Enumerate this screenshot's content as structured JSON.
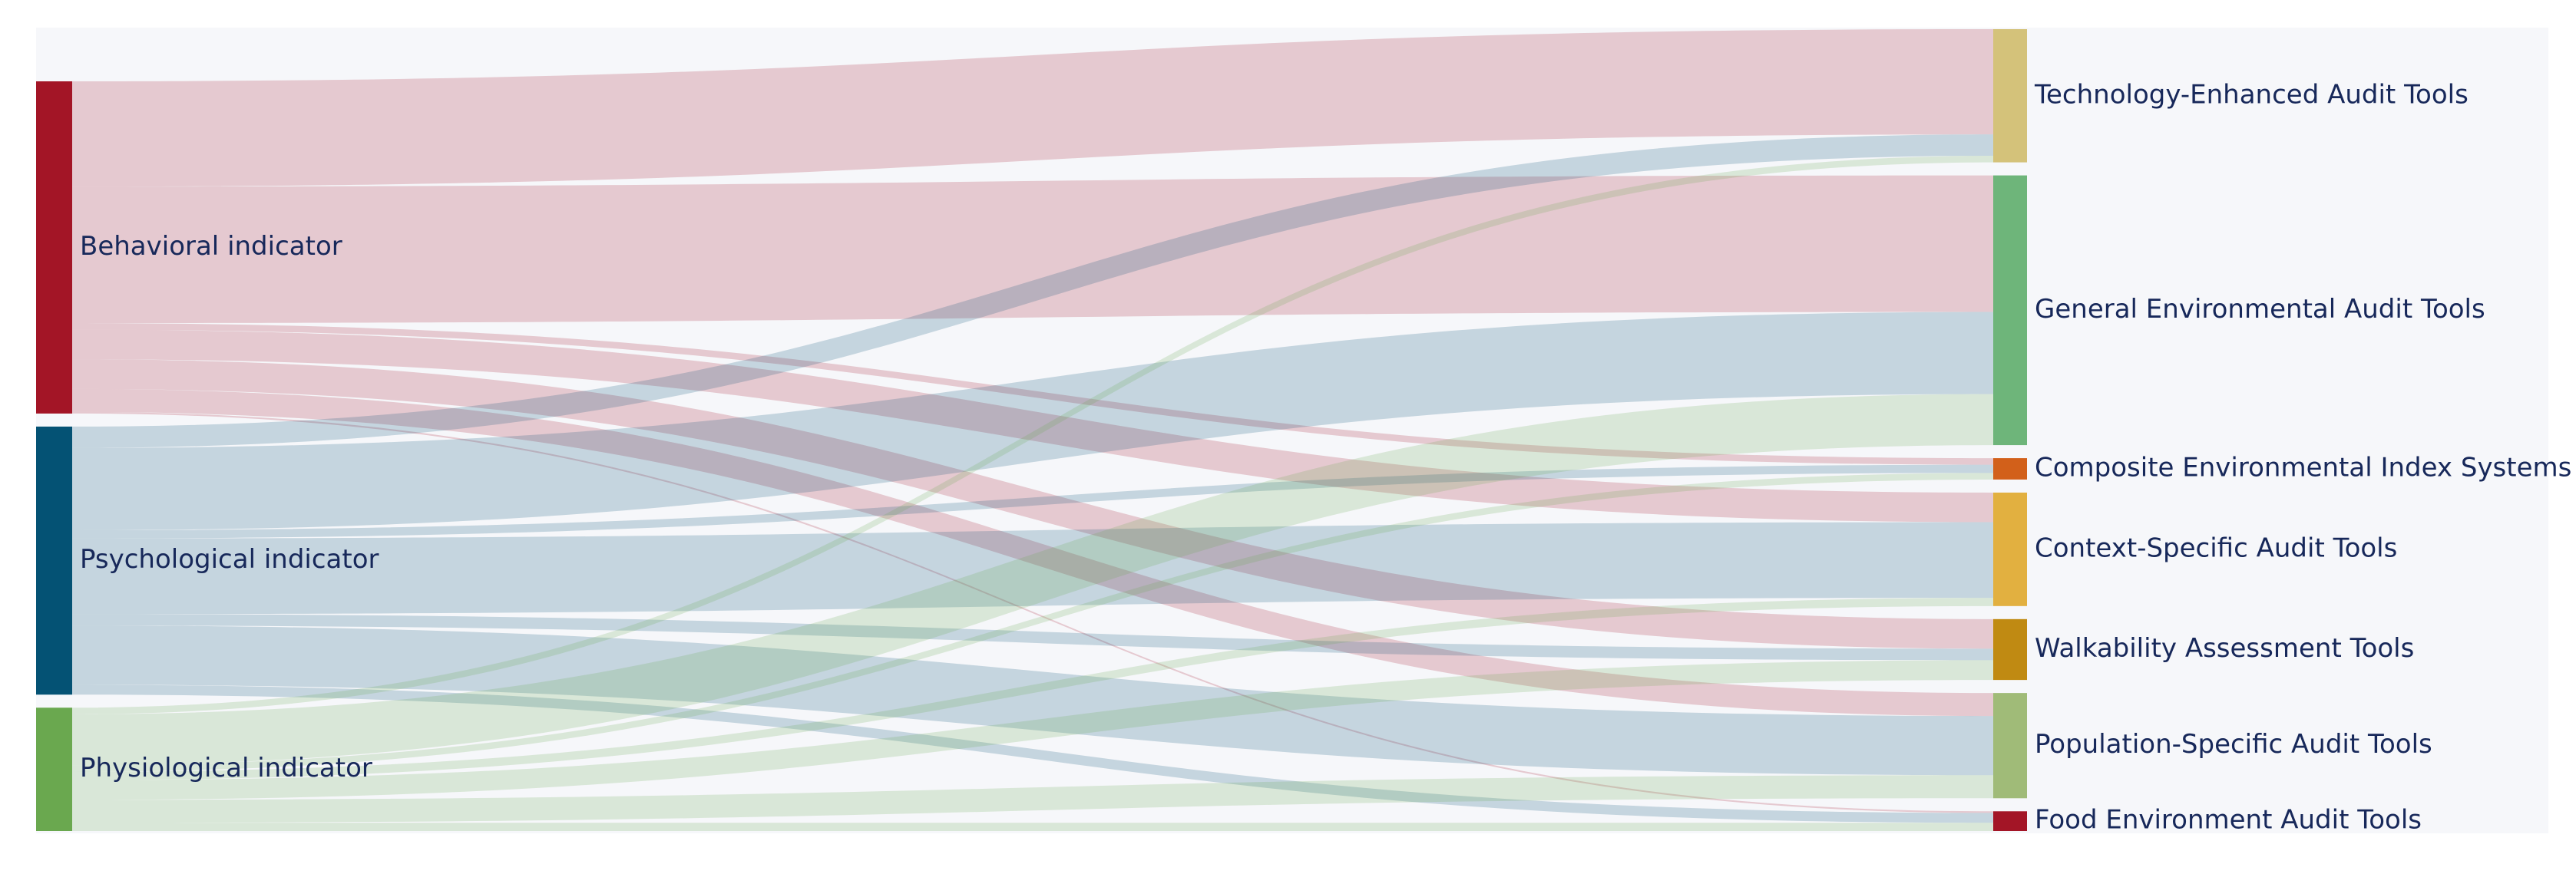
{
  "chart_data": {
    "type": "sankey",
    "nodes": [
      {
        "name": "Behavioral indicator",
        "color": "#a31526"
      },
      {
        "name": "Psychological indicator",
        "color": "#045274"
      },
      {
        "name": "Physiological indicator",
        "color": "#6aa84f"
      },
      {
        "name": "Technology-Enhanced Audit Tools",
        "color": "#d4c27a"
      },
      {
        "name": "General Environmental Audit Tools",
        "color": "#6eb57a"
      },
      {
        "name": "Composite Environmental Index Systems",
        "color": "#d2601a"
      },
      {
        "name": "Context-Specific Audit Tools",
        "color": "#e2b040"
      },
      {
        "name": "Walkability Assessment Tools",
        "color": "#c08a12"
      },
      {
        "name": "Population-Specific Audit Tools",
        "color": "#a0bb78"
      },
      {
        "name": "Food Environment Audit Tools",
        "color": "#a31526"
      }
    ],
    "links": [
      {
        "source": 0,
        "target": 3,
        "value": 64
      },
      {
        "source": 0,
        "target": 4,
        "value": 83
      },
      {
        "source": 0,
        "target": 5,
        "value": 4
      },
      {
        "source": 0,
        "target": 6,
        "value": 18
      },
      {
        "source": 0,
        "target": 7,
        "value": 18
      },
      {
        "source": 0,
        "target": 8,
        "value": 14
      },
      {
        "source": 0,
        "target": 9,
        "value": 1
      },
      {
        "source": 1,
        "target": 3,
        "value": 13
      },
      {
        "source": 1,
        "target": 4,
        "value": 50
      },
      {
        "source": 1,
        "target": 5,
        "value": 5
      },
      {
        "source": 1,
        "target": 6,
        "value": 46
      },
      {
        "source": 1,
        "target": 7,
        "value": 7
      },
      {
        "source": 1,
        "target": 8,
        "value": 36
      },
      {
        "source": 1,
        "target": 9,
        "value": 6
      },
      {
        "source": 2,
        "target": 3,
        "value": 4
      },
      {
        "source": 2,
        "target": 4,
        "value": 31
      },
      {
        "source": 2,
        "target": 5,
        "value": 4
      },
      {
        "source": 2,
        "target": 6,
        "value": 5
      },
      {
        "source": 2,
        "target": 7,
        "value": 12
      },
      {
        "source": 2,
        "target": 8,
        "value": 14
      },
      {
        "source": 2,
        "target": 9,
        "value": 5
      }
    ]
  }
}
